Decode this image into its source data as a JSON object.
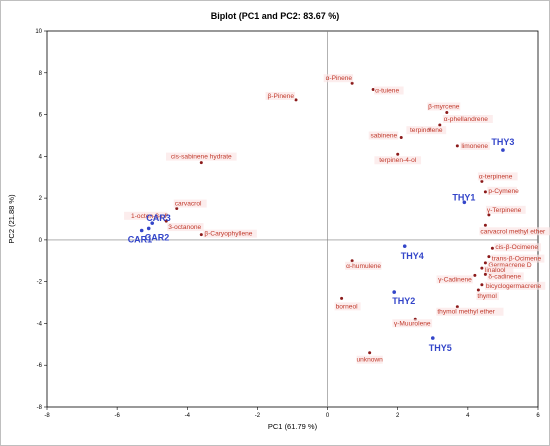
{
  "chart_data": {
    "type": "scatter",
    "title": "Biplot (PC1 and PC2: 83.67 %)",
    "xlabel": "PC1 (61.79 %)",
    "ylabel": "PC2 (21.88 %)",
    "xlim": [
      -8,
      6
    ],
    "ylim": [
      -8,
      10
    ],
    "xticks": [
      -8,
      -6,
      -4,
      -2,
      0,
      2,
      4,
      6
    ],
    "yticks": [
      -8,
      -6,
      -4,
      -2,
      0,
      2,
      4,
      6,
      8,
      10
    ],
    "grid": false,
    "colors": {
      "variables": "#8b1a1a",
      "variable_labels": "#c0392b",
      "observations": "#3345c9"
    },
    "series": [
      {
        "name": "Variables",
        "points": [
          {
            "label": "α-Pinene",
            "x": 0.7,
            "y": 7.5
          },
          {
            "label": "α-tuiene",
            "x": 1.3,
            "y": 7.2
          },
          {
            "label": "β-Pinene",
            "x": -0.9,
            "y": 6.7
          },
          {
            "label": "β-myrcene",
            "x": 3.4,
            "y": 6.1
          },
          {
            "label": "α-phellandrene",
            "x": 3.2,
            "y": 5.5
          },
          {
            "label": "terpinolene",
            "x": 2.9,
            "y": 5.3
          },
          {
            "label": "sabinene",
            "x": 2.1,
            "y": 4.9
          },
          {
            "label": "limonene",
            "x": 3.7,
            "y": 4.5
          },
          {
            "label": "terpinen-4-ol",
            "x": 2.0,
            "y": 4.1
          },
          {
            "label": "cis-sabinene hydrate",
            "x": -3.6,
            "y": 3.7
          },
          {
            "label": "α-terpinene",
            "x": 4.4,
            "y": 2.8
          },
          {
            "label": "p-Cymene",
            "x": 4.5,
            "y": 2.3
          },
          {
            "label": "carvacrol",
            "x": -4.3,
            "y": 1.5
          },
          {
            "label": "1-octen-3-ol",
            "x": -4.6,
            "y": 1.2
          },
          {
            "label": "γ-Terpinene",
            "x": 4.6,
            "y": 1.2
          },
          {
            "label": "3-octanone",
            "x": -4.6,
            "y": 0.9
          },
          {
            "label": "carvacrol methyl ether",
            "x": 4.5,
            "y": 0.7
          },
          {
            "label": "β-Caryophyllene",
            "x": -3.6,
            "y": 0.25
          },
          {
            "label": "cis-β-Ocimene",
            "x": 4.7,
            "y": -0.4
          },
          {
            "label": "trans-β-Ocimene",
            "x": 4.6,
            "y": -0.8
          },
          {
            "label": "Germacrene D",
            "x": 4.5,
            "y": -1.1
          },
          {
            "label": "linalool",
            "x": 4.4,
            "y": -1.35
          },
          {
            "label": "δ-cadinene",
            "x": 4.5,
            "y": -1.65
          },
          {
            "label": "α-humulene",
            "x": 0.7,
            "y": -1.0
          },
          {
            "label": "γ-Cadinene",
            "x": 4.2,
            "y": -1.7
          },
          {
            "label": "bicyclogermacrene",
            "x": 4.4,
            "y": -2.15
          },
          {
            "label": "thymol",
            "x": 4.3,
            "y": -2.4
          },
          {
            "label": "borneol",
            "x": 0.4,
            "y": -2.8
          },
          {
            "label": "thymol methyl ether",
            "x": 3.7,
            "y": -3.2
          },
          {
            "label": "γ-Muurolene",
            "x": 2.5,
            "y": -3.8
          },
          {
            "label": "unknown",
            "x": 1.2,
            "y": -5.4
          }
        ]
      },
      {
        "name": "Observations",
        "points": [
          {
            "label": "THY3",
            "x": 5.0,
            "y": 4.3
          },
          {
            "label": "THY1",
            "x": 3.9,
            "y": 1.8
          },
          {
            "label": "THY4",
            "x": 2.2,
            "y": -0.3
          },
          {
            "label": "THY2",
            "x": 1.9,
            "y": -2.5
          },
          {
            "label": "THY5",
            "x": 3.0,
            "y": -4.7
          },
          {
            "label": "CAR3",
            "x": -5.0,
            "y": 0.8
          },
          {
            "label": "CAR1",
            "x": -5.3,
            "y": 0.45
          },
          {
            "label": "CAR2",
            "x": -5.1,
            "y": 0.55
          }
        ]
      }
    ]
  }
}
